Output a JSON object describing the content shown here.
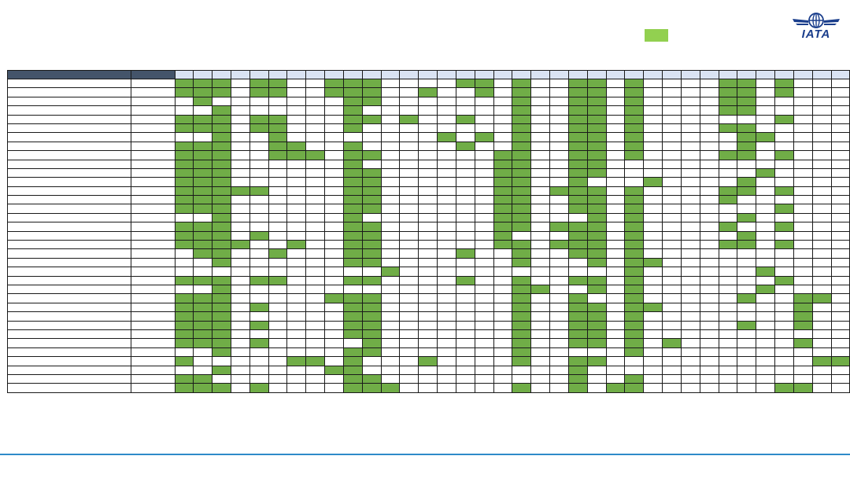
{
  "colors": {
    "header_dark": "#44546a",
    "header_light": "#dae3f3",
    "filled": "#70ad47",
    "legend": "#92d050",
    "logo": "#1a3e8c",
    "bottom_line": "#2e8bc9"
  },
  "logo": {
    "text": "IATA",
    "icon": "globe-wings-icon"
  },
  "legend": {
    "swatch_label": ""
  },
  "grid": {
    "rows": [
      "111011001110000110100110100001101000",
      "111011001110010010100110100001101000",
      "010000000110000000100110100001100000",
      "001000000100000000100110100001100000",
      "111011000110100100100110100000001000",
      "111011000100000000100110100001100000",
      "001001000000001010100110100000110000",
      "111001100100000100100110100000100000",
      "111001110110000001100110100001101000",
      "111000000100000001100110000000000000",
      "111000000110000001100110000000010000",
      "111000000110000001100100010000100000",
      "111110000110000001101110100001101000",
      "111000000110000001100110100001000000",
      "111000000110000001100110100000001000",
      "001000000100000001100010100000100000",
      "111000000110000001101110100001001000",
      "111010000110000001000110100000100000",
      "111100100110000001101110100001101000",
      "011001000110000100100110100000000000",
      "001000000110000000100010110000000000",
      "000000000001000000000000100000010000",
      "111011000110000100100110100000001000",
      "001000000000000000110010100000010000",
      "111000001110000000100100100000100110",
      "111010000110000000100110110000000100",
      "111000000110000000100110100000000100",
      "111010000110000000100110100000100100",
      "111000000110000000100110100000000000",
      "111010000010000000100110101000000100",
      "001000000110000000100000100000000000",
      "100000110100010000100110000000000011",
      "001000001100000000000100000000000000",
      "110000000110000000000100100000000000",
      "111010000111000000100101100000001100"
    ]
  }
}
